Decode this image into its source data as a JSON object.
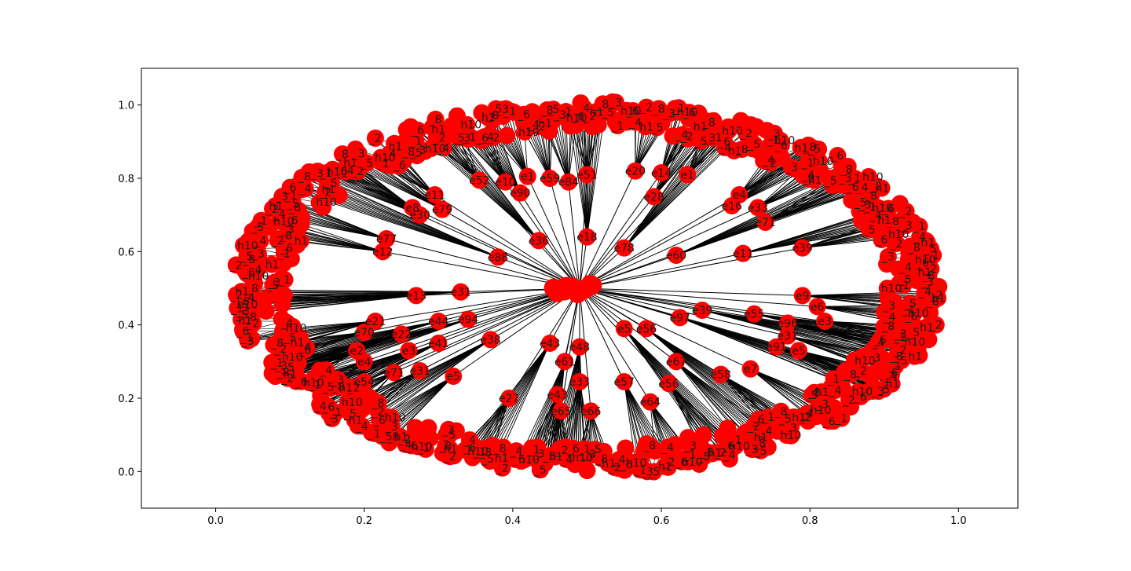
{
  "chart_data": {
    "type": "network",
    "title": "",
    "xlabel": "",
    "ylabel": "",
    "xlim": [
      -0.1,
      1.08
    ],
    "ylim": [
      -0.1,
      1.1
    ],
    "x_ticks": [
      "0.0",
      "0.2",
      "0.4",
      "0.6",
      "0.8",
      "1.0"
    ],
    "y_ticks": [
      "0.0",
      "0.2",
      "0.4",
      "0.6",
      "0.8",
      "1.0"
    ],
    "grid": false,
    "node_color": "#ff0000",
    "edge_color": "#000000",
    "hub": {
      "x": 0.49,
      "y": 0.5
    },
    "inner_ring": [
      {
        "label": "e11",
        "x": 0.295,
        "y": 0.755
      },
      {
        "label": "e8",
        "x": 0.265,
        "y": 0.72
      },
      {
        "label": "e79",
        "x": 0.305,
        "y": 0.715
      },
      {
        "label": "e30",
        "x": 0.275,
        "y": 0.7
      },
      {
        "label": "e52",
        "x": 0.355,
        "y": 0.795
      },
      {
        "label": "e10",
        "x": 0.39,
        "y": 0.79
      },
      {
        "label": "e1",
        "x": 0.42,
        "y": 0.805
      },
      {
        "label": "e59",
        "x": 0.45,
        "y": 0.8
      },
      {
        "label": "e90",
        "x": 0.41,
        "y": 0.76
      },
      {
        "label": "e84",
        "x": 0.475,
        "y": 0.79
      },
      {
        "label": "e51",
        "x": 0.5,
        "y": 0.81
      },
      {
        "label": "e20",
        "x": 0.565,
        "y": 0.82
      },
      {
        "label": "e14",
        "x": 0.6,
        "y": 0.815
      },
      {
        "label": "e1",
        "x": 0.635,
        "y": 0.81
      },
      {
        "label": "e28",
        "x": 0.59,
        "y": 0.75
      },
      {
        "label": "e4",
        "x": 0.705,
        "y": 0.755
      },
      {
        "label": "e16",
        "x": 0.695,
        "y": 0.725
      },
      {
        "label": "e33",
        "x": 0.73,
        "y": 0.72
      },
      {
        "label": "e71",
        "x": 0.74,
        "y": 0.68
      },
      {
        "label": "e39",
        "x": 0.79,
        "y": 0.61
      },
      {
        "label": "e11",
        "x": 0.71,
        "y": 0.595
      },
      {
        "label": "e60",
        "x": 0.62,
        "y": 0.59
      },
      {
        "label": "e78",
        "x": 0.55,
        "y": 0.61
      },
      {
        "label": "e18",
        "x": 0.5,
        "y": 0.64
      },
      {
        "label": "e36",
        "x": 0.435,
        "y": 0.63
      },
      {
        "label": "e88",
        "x": 0.38,
        "y": 0.585
      },
      {
        "label": "e12",
        "x": 0.225,
        "y": 0.6
      },
      {
        "label": "e77",
        "x": 0.23,
        "y": 0.635
      },
      {
        "label": "e13",
        "x": 0.27,
        "y": 0.48
      },
      {
        "label": "e31",
        "x": 0.33,
        "y": 0.49
      },
      {
        "label": "e44",
        "x": 0.3,
        "y": 0.41
      },
      {
        "label": "e94",
        "x": 0.34,
        "y": 0.415
      },
      {
        "label": "e21",
        "x": 0.215,
        "y": 0.41
      },
      {
        "label": "e22",
        "x": 0.25,
        "y": 0.375
      },
      {
        "label": "e70",
        "x": 0.2,
        "y": 0.38
      },
      {
        "label": "e3",
        "x": 0.26,
        "y": 0.33
      },
      {
        "label": "e41",
        "x": 0.3,
        "y": 0.35
      },
      {
        "label": "e71",
        "x": 0.24,
        "y": 0.27
      },
      {
        "label": "e31",
        "x": 0.275,
        "y": 0.275
      },
      {
        "label": "e5",
        "x": 0.32,
        "y": 0.26
      },
      {
        "label": "e54",
        "x": 0.2,
        "y": 0.245
      },
      {
        "label": "e38",
        "x": 0.37,
        "y": 0.36
      },
      {
        "label": "e43",
        "x": 0.45,
        "y": 0.35
      },
      {
        "label": "e48",
        "x": 0.49,
        "y": 0.34
      },
      {
        "label": "e61",
        "x": 0.47,
        "y": 0.3
      },
      {
        "label": "e5",
        "x": 0.55,
        "y": 0.39
      },
      {
        "label": "e67",
        "x": 0.62,
        "y": 0.3
      },
      {
        "label": "e56",
        "x": 0.61,
        "y": 0.24
      },
      {
        "label": "e57",
        "x": 0.55,
        "y": 0.245
      },
      {
        "label": "e33",
        "x": 0.49,
        "y": 0.245
      },
      {
        "label": "e43",
        "x": 0.46,
        "y": 0.21
      },
      {
        "label": "e65",
        "x": 0.465,
        "y": 0.165
      },
      {
        "label": "e66",
        "x": 0.505,
        "y": 0.165
      },
      {
        "label": "e64",
        "x": 0.585,
        "y": 0.19
      },
      {
        "label": "e27",
        "x": 0.395,
        "y": 0.2
      },
      {
        "label": "e58",
        "x": 0.68,
        "y": 0.265
      },
      {
        "label": "e7",
        "x": 0.72,
        "y": 0.28
      },
      {
        "label": "e91",
        "x": 0.755,
        "y": 0.34
      },
      {
        "label": "e31",
        "x": 0.77,
        "y": 0.37
      },
      {
        "label": "e5",
        "x": 0.785,
        "y": 0.33
      },
      {
        "label": "e96",
        "x": 0.77,
        "y": 0.405
      },
      {
        "label": "e3",
        "x": 0.82,
        "y": 0.41
      },
      {
        "label": "e9",
        "x": 0.79,
        "y": 0.48
      },
      {
        "label": "e6",
        "x": 0.81,
        "y": 0.45
      },
      {
        "label": "e55",
        "x": 0.725,
        "y": 0.43
      },
      {
        "label": "e39",
        "x": 0.655,
        "y": 0.44
      },
      {
        "label": "e97",
        "x": 0.625,
        "y": 0.42
      },
      {
        "label": "e56",
        "x": 0.58,
        "y": 0.39
      },
      {
        "label": "e2",
        "x": 0.19,
        "y": 0.33
      },
      {
        "label": "e4",
        "x": 0.2,
        "y": 0.3
      }
    ],
    "outer_ring": {
      "center_x": 0.5,
      "center_y": 0.5,
      "radius_x": 0.47,
      "radius_y": 0.5,
      "node_count": 700
    },
    "visible_node_labels": [
      "e11",
      "e8",
      "e79",
      "e30",
      "e52",
      "e10",
      "e1",
      "e59",
      "e90",
      "e84",
      "e51",
      "e20",
      "e14",
      "e28",
      "e4",
      "e16",
      "e33",
      "e71",
      "e39",
      "e60",
      "e78",
      "e18",
      "e36",
      "e88",
      "e12",
      "e77",
      "e13",
      "e31",
      "e44",
      "e94",
      "e21",
      "e22",
      "e70",
      "e3",
      "e41",
      "e5",
      "e54",
      "e38",
      "e43",
      "e48",
      "e61",
      "e67",
      "e56",
      "e57",
      "e65",
      "e66",
      "e64",
      "e27",
      "e58",
      "e7",
      "e91",
      "e96",
      "e9",
      "e6",
      "e55",
      "e97",
      "e2",
      "h10",
      "h1",
      "_1",
      "_2",
      "_3",
      "_4",
      "_5",
      "_6",
      "_8"
    ]
  }
}
